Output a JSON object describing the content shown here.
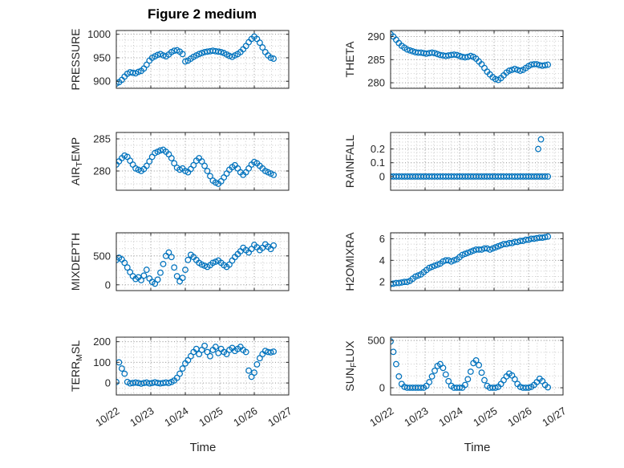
{
  "figure": {
    "title": "Figure 2 medium",
    "background": "#ffffff"
  },
  "style": {
    "marker_color": "#0072BD",
    "axis_color": "#262626",
    "text_color": "#262626",
    "grid_major_color": "#9a9a9a",
    "grid_minor_color": "#c9c9c9"
  },
  "chart_data": [
    {
      "name": "pressure",
      "type": "scatter",
      "marker": "circle-open",
      "ylabel": "PRESSURE",
      "ylabel_parts": [
        {
          "t": "PRESSURE"
        }
      ],
      "xlim": [
        0,
        5
      ],
      "xticks": [
        0,
        1,
        2,
        3,
        4,
        5
      ],
      "xminor": 0.25,
      "ylim": [
        885,
        1008
      ],
      "yticks": [
        900,
        950,
        1000
      ],
      "yminor": 12.5,
      "x": [
        0,
        0.08,
        0.16,
        0.24,
        0.32,
        0.4,
        0.48,
        0.56,
        0.64,
        0.72,
        0.8,
        0.88,
        0.96,
        1.04,
        1.12,
        1.2,
        1.28,
        1.36,
        1.44,
        1.52,
        1.6,
        1.68,
        1.76,
        1.84,
        1.92,
        2,
        2.08,
        2.16,
        2.24,
        2.32,
        2.4,
        2.48,
        2.56,
        2.64,
        2.72,
        2.8,
        2.88,
        2.96,
        3.04,
        3.12,
        3.2,
        3.28,
        3.36,
        3.44,
        3.52,
        3.6,
        3.68,
        3.76,
        3.84,
        3.92,
        4,
        4.08,
        4.16,
        4.24,
        4.32,
        4.4,
        4.48,
        4.56
      ],
      "y": [
        895,
        898,
        903,
        910,
        916,
        919,
        918,
        917,
        920,
        922,
        927,
        935,
        944,
        950,
        953,
        956,
        958,
        955,
        953,
        957,
        962,
        965,
        966,
        963,
        958,
        942,
        944,
        948,
        952,
        955,
        958,
        960,
        962,
        963,
        964,
        965,
        964,
        963,
        962,
        960,
        957,
        954,
        952,
        955,
        958,
        962,
        968,
        975,
        983,
        990,
        995,
        990,
        982,
        972,
        962,
        955,
        950,
        948
      ]
    },
    {
      "name": "theta",
      "type": "scatter",
      "marker": "circle-open",
      "ylabel": "THETA",
      "ylabel_parts": [
        {
          "t": "THETA"
        }
      ],
      "xlim": [
        0,
        5
      ],
      "xticks": [
        0,
        1,
        2,
        3,
        4,
        5
      ],
      "xminor": 0.25,
      "ylim": [
        278.8,
        291.3
      ],
      "yticks": [
        280,
        285,
        290
      ],
      "yminor": 1,
      "x": [
        0,
        0.08,
        0.16,
        0.24,
        0.32,
        0.4,
        0.48,
        0.56,
        0.64,
        0.72,
        0.8,
        0.88,
        0.96,
        1.04,
        1.12,
        1.2,
        1.28,
        1.36,
        1.44,
        1.52,
        1.6,
        1.68,
        1.76,
        1.84,
        1.92,
        2,
        2.08,
        2.16,
        2.24,
        2.32,
        2.4,
        2.48,
        2.56,
        2.64,
        2.72,
        2.8,
        2.88,
        2.96,
        3.04,
        3.12,
        3.2,
        3.28,
        3.36,
        3.44,
        3.52,
        3.6,
        3.68,
        3.76,
        3.84,
        3.92,
        4,
        4.08,
        4.16,
        4.24,
        4.32,
        4.4,
        4.48,
        4.56
      ],
      "y": [
        290.5,
        290,
        289.3,
        288.6,
        288,
        287.6,
        287.2,
        287,
        286.8,
        286.6,
        286.5,
        286.5,
        286.4,
        286.3,
        286.4,
        286.5,
        286.4,
        286.2,
        286,
        285.9,
        285.8,
        285.9,
        286,
        286.1,
        286,
        285.8,
        285.6,
        285.5,
        285.6,
        285.8,
        285.6,
        285.2,
        284.6,
        284,
        283.2,
        282.4,
        281.8,
        281.2,
        280.8,
        280.6,
        281,
        281.6,
        282.2,
        282.6,
        282.8,
        283,
        282.8,
        282.6,
        282.8,
        283.2,
        283.6,
        283.9,
        284,
        284,
        283.8,
        283.7,
        283.8,
        283.9
      ]
    },
    {
      "name": "air-temp",
      "type": "scatter",
      "marker": "circle-open",
      "ylabel": "AIR_TEMP",
      "ylabel_parts": [
        {
          "t": "AIR"
        },
        {
          "t": "T",
          "sub": true
        },
        {
          "t": "EMP"
        }
      ],
      "xlim": [
        0,
        5
      ],
      "xticks": [
        0,
        1,
        2,
        3,
        4,
        5
      ],
      "xminor": 0.25,
      "ylim": [
        277,
        286
      ],
      "yticks": [
        280,
        285
      ],
      "yminor": 1,
      "x": [
        0,
        0.08,
        0.16,
        0.24,
        0.32,
        0.4,
        0.48,
        0.56,
        0.64,
        0.72,
        0.8,
        0.88,
        0.96,
        1.04,
        1.12,
        1.2,
        1.28,
        1.36,
        1.44,
        1.52,
        1.6,
        1.68,
        1.76,
        1.84,
        1.92,
        2,
        2.08,
        2.16,
        2.24,
        2.32,
        2.4,
        2.48,
        2.56,
        2.64,
        2.72,
        2.8,
        2.88,
        2.96,
        3.04,
        3.12,
        3.2,
        3.28,
        3.36,
        3.44,
        3.52,
        3.6,
        3.68,
        3.76,
        3.84,
        3.92,
        4,
        4.08,
        4.16,
        4.24,
        4.32,
        4.4,
        4.48,
        4.56
      ],
      "y": [
        281,
        281.5,
        282,
        282.4,
        282.2,
        281.6,
        281,
        280.4,
        280.2,
        280,
        280.3,
        280.8,
        281.5,
        282.2,
        282.8,
        283,
        283.2,
        283.3,
        283,
        282.6,
        282,
        281.2,
        280.5,
        280.2,
        280.4,
        280,
        279.8,
        280.3,
        280.9,
        281.6,
        282,
        281.5,
        280.8,
        280,
        279.2,
        278.5,
        278.2,
        278,
        278.4,
        279,
        279.6,
        280.2,
        280.6,
        280.9,
        280.4,
        279.8,
        279.4,
        279.8,
        280.4,
        281,
        281.4,
        281.2,
        280.8,
        280.4,
        280,
        279.8,
        279.6,
        279.4
      ]
    },
    {
      "name": "rainfall",
      "type": "scatter",
      "marker": "circle-open",
      "ylabel": "RAINFALL",
      "ylabel_parts": [
        {
          "t": "RAINFALL"
        }
      ],
      "xlim": [
        0,
        5
      ],
      "xticks": [
        0,
        1,
        2,
        3,
        4,
        5
      ],
      "xminor": 0.25,
      "ylim": [
        -0.1,
        0.32
      ],
      "yticks": [
        0,
        0.1,
        0.2
      ],
      "yminor": 0.025,
      "x": [
        0,
        0.08,
        0.16,
        0.24,
        0.32,
        0.4,
        0.48,
        0.56,
        0.64,
        0.72,
        0.8,
        0.88,
        0.96,
        1.04,
        1.12,
        1.2,
        1.28,
        1.36,
        1.44,
        1.52,
        1.6,
        1.68,
        1.76,
        1.84,
        1.92,
        2,
        2.08,
        2.16,
        2.24,
        2.32,
        2.4,
        2.48,
        2.56,
        2.64,
        2.72,
        2.8,
        2.88,
        2.96,
        3.04,
        3.12,
        3.2,
        3.28,
        3.36,
        3.44,
        3.52,
        3.6,
        3.68,
        3.76,
        3.84,
        3.92,
        4,
        4.08,
        4.16,
        4.24,
        4.32,
        4.4,
        4.48,
        4.56,
        4.28,
        4.36
      ],
      "y": [
        0,
        0,
        0,
        0,
        0,
        0,
        0,
        0,
        0,
        0,
        0,
        0,
        0,
        0,
        0,
        0,
        0,
        0,
        0,
        0,
        0,
        0,
        0,
        0,
        0,
        0,
        0,
        0,
        0,
        0,
        0,
        0,
        0,
        0,
        0,
        0,
        0,
        0,
        0,
        0,
        0,
        0,
        0,
        0,
        0,
        0,
        0,
        0,
        0,
        0,
        0,
        0,
        0,
        0,
        0,
        0,
        0,
        0,
        0.2,
        0.27
      ]
    },
    {
      "name": "mixdepth",
      "type": "scatter",
      "marker": "circle-open",
      "ylabel": "MIXDEPTH",
      "ylabel_parts": [
        {
          "t": "MIXDEPTH"
        }
      ],
      "xlim": [
        0,
        5
      ],
      "xticks": [
        0,
        1,
        2,
        3,
        4,
        5
      ],
      "xminor": 0.25,
      "ylim": [
        -100,
        900
      ],
      "yticks": [
        0,
        500
      ],
      "yminor": 125,
      "x": [
        0,
        0.08,
        0.16,
        0.24,
        0.32,
        0.4,
        0.48,
        0.56,
        0.64,
        0.72,
        0.8,
        0.88,
        0.96,
        1.04,
        1.12,
        1.2,
        1.28,
        1.36,
        1.44,
        1.52,
        1.6,
        1.68,
        1.76,
        1.84,
        1.92,
        2,
        2.08,
        2.16,
        2.24,
        2.32,
        2.4,
        2.48,
        2.56,
        2.64,
        2.72,
        2.8,
        2.88,
        2.96,
        3.04,
        3.12,
        3.2,
        3.28,
        3.36,
        3.44,
        3.52,
        3.6,
        3.68,
        3.76,
        3.84,
        3.92,
        4,
        4.08,
        4.16,
        4.24,
        4.32,
        4.4,
        4.48,
        4.56
      ],
      "y": [
        430,
        470,
        440,
        380,
        300,
        220,
        150,
        100,
        130,
        80,
        160,
        260,
        110,
        50,
        20,
        90,
        210,
        360,
        500,
        560,
        480,
        300,
        150,
        60,
        120,
        260,
        430,
        520,
        480,
        430,
        380,
        350,
        330,
        310,
        340,
        380,
        400,
        420,
        380,
        340,
        310,
        350,
        420,
        480,
        530,
        580,
        640,
        600,
        560,
        620,
        690,
        650,
        600,
        640,
        700,
        660,
        620,
        680
      ]
    },
    {
      "name": "h2omixra",
      "type": "scatter",
      "marker": "circle-open",
      "ylabel": "H2OMIXRA",
      "ylabel_parts": [
        {
          "t": "H2OMIXRA"
        }
      ],
      "xlim": [
        0,
        5
      ],
      "xticks": [
        0,
        1,
        2,
        3,
        4,
        5
      ],
      "xminor": 0.25,
      "ylim": [
        1.2,
        6.55
      ],
      "yticks": [
        2,
        4,
        6
      ],
      "yminor": 0.5,
      "x": [
        0,
        0.08,
        0.16,
        0.24,
        0.32,
        0.4,
        0.48,
        0.56,
        0.64,
        0.72,
        0.8,
        0.88,
        0.96,
        1.04,
        1.12,
        1.2,
        1.28,
        1.36,
        1.44,
        1.52,
        1.6,
        1.68,
        1.76,
        1.84,
        1.92,
        2,
        2.08,
        2.16,
        2.24,
        2.32,
        2.4,
        2.48,
        2.56,
        2.64,
        2.72,
        2.8,
        2.88,
        2.96,
        3.04,
        3.12,
        3.2,
        3.28,
        3.36,
        3.44,
        3.52,
        3.6,
        3.68,
        3.76,
        3.84,
        3.92,
        4,
        4.08,
        4.16,
        4.24,
        4.32,
        4.4,
        4.48,
        4.56
      ],
      "y": [
        1.8,
        1.85,
        1.9,
        1.9,
        1.95,
        2,
        2,
        2.1,
        2.3,
        2.5,
        2.6,
        2.7,
        2.9,
        3.1,
        3.3,
        3.4,
        3.5,
        3.6,
        3.7,
        3.9,
        4,
        4,
        3.9,
        4,
        4.1,
        4.3,
        4.5,
        4.6,
        4.7,
        4.8,
        4.9,
        5,
        5,
        5,
        5.1,
        5.1,
        5,
        5.1,
        5.2,
        5.3,
        5.4,
        5.5,
        5.5,
        5.6,
        5.6,
        5.7,
        5.7,
        5.8,
        5.8,
        5.9,
        5.9,
        6,
        6,
        6.05,
        6.1,
        6.1,
        6.15,
        6.2
      ]
    },
    {
      "name": "terr-msl",
      "type": "scatter",
      "marker": "circle-open",
      "ylabel": "TERR_MSL",
      "ylabel_parts": [
        {
          "t": "TERR"
        },
        {
          "t": "M",
          "sub": true
        },
        {
          "t": "SL"
        }
      ],
      "xlim": [
        0,
        5
      ],
      "xticks": [
        0,
        1,
        2,
        3,
        4,
        5
      ],
      "xminor": 0.25,
      "xtick_labels": [
        "10/22",
        "10/23",
        "10/24",
        "10/25",
        "10/26",
        "10/27"
      ],
      "xlabel": "Time",
      "ylim": [
        -58,
        222
      ],
      "yticks": [
        0,
        100,
        200
      ],
      "yminor": 25,
      "x": [
        0,
        0.08,
        0.16,
        0.24,
        0.32,
        0.4,
        0.48,
        0.56,
        0.64,
        0.72,
        0.8,
        0.88,
        0.96,
        1.04,
        1.12,
        1.2,
        1.28,
        1.36,
        1.44,
        1.52,
        1.6,
        1.68,
        1.76,
        1.84,
        1.92,
        2,
        2.08,
        2.16,
        2.24,
        2.32,
        2.4,
        2.48,
        2.56,
        2.64,
        2.72,
        2.8,
        2.88,
        2.96,
        3.04,
        3.12,
        3.2,
        3.28,
        3.36,
        3.44,
        3.52,
        3.6,
        3.68,
        3.76,
        3.84,
        3.92,
        4,
        4.08,
        4.16,
        4.24,
        4.32,
        4.4,
        4.48,
        4.56
      ],
      "y": [
        5,
        100,
        70,
        45,
        5,
        -2,
        0,
        2,
        0,
        -3,
        0,
        2,
        -2,
        0,
        3,
        0,
        -2,
        0,
        2,
        0,
        5,
        12,
        25,
        45,
        70,
        95,
        110,
        130,
        150,
        165,
        140,
        160,
        180,
        150,
        130,
        160,
        175,
        145,
        165,
        150,
        140,
        160,
        170,
        155,
        165,
        175,
        160,
        150,
        60,
        30,
        50,
        90,
        120,
        140,
        155,
        150,
        148,
        152
      ]
    },
    {
      "name": "sun-flux",
      "type": "scatter",
      "marker": "circle-open",
      "ylabel": "SUN_FLUX",
      "ylabel_parts": [
        {
          "t": "SUN"
        },
        {
          "t": "F",
          "sub": true
        },
        {
          "t": "LUX"
        }
      ],
      "xlim": [
        0,
        5
      ],
      "xticks": [
        0,
        1,
        2,
        3,
        4,
        5
      ],
      "xminor": 0.25,
      "xtick_labels": [
        "10/22",
        "10/23",
        "10/24",
        "10/25",
        "10/26",
        "10/27"
      ],
      "xlabel": "Time",
      "ylim": [
        -76,
        535
      ],
      "yticks": [
        0,
        500
      ],
      "yminor": 125,
      "x": [
        0,
        0.08,
        0.16,
        0.24,
        0.32,
        0.4,
        0.48,
        0.56,
        0.64,
        0.72,
        0.8,
        0.88,
        0.96,
        1.04,
        1.12,
        1.2,
        1.28,
        1.36,
        1.44,
        1.52,
        1.6,
        1.68,
        1.76,
        1.84,
        1.92,
        2,
        2.08,
        2.16,
        2.24,
        2.32,
        2.4,
        2.48,
        2.56,
        2.64,
        2.72,
        2.8,
        2.88,
        2.96,
        3.04,
        3.12,
        3.2,
        3.28,
        3.36,
        3.44,
        3.52,
        3.6,
        3.68,
        3.76,
        3.84,
        3.92,
        4,
        4.08,
        4.16,
        4.24,
        4.32,
        4.4,
        4.48,
        4.56
      ],
      "y": [
        490,
        380,
        250,
        120,
        40,
        10,
        0,
        0,
        0,
        0,
        0,
        0,
        0,
        20,
        60,
        120,
        180,
        230,
        250,
        210,
        140,
        70,
        20,
        0,
        0,
        0,
        0,
        30,
        90,
        170,
        260,
        290,
        240,
        160,
        80,
        20,
        0,
        0,
        0,
        10,
        40,
        80,
        120,
        150,
        130,
        90,
        40,
        10,
        0,
        0,
        0,
        10,
        30,
        60,
        95,
        70,
        30,
        5
      ]
    }
  ]
}
